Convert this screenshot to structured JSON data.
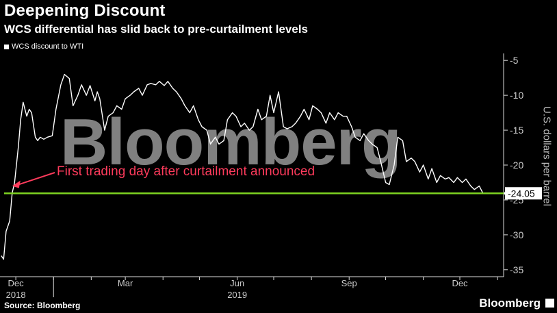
{
  "header": {
    "title": "Deepening Discount",
    "subtitle": "WCS differential has slid back to pre-curtailment levels"
  },
  "legend": {
    "label": "WCS discount to WTI"
  },
  "footer": {
    "source": "Source: Bloomberg",
    "brand": "Bloomberg"
  },
  "watermark": "Bloomberg",
  "colors": {
    "background": "#000000",
    "series": "#ffffff",
    "reference_line": "#7ed321",
    "annotation": "#ff3b5c"
  },
  "chart_data": {
    "type": "line",
    "title": "Deepening Discount",
    "subtitle": "WCS differential has slid back to pre-curtailment levels",
    "ylabel": "U.S. dollars per barrel",
    "ylim": [
      -36,
      -4
    ],
    "yticks": [
      -5,
      -10,
      -15,
      -20,
      -25,
      -30,
      -35
    ],
    "ytick_labels": [
      "-5",
      "-10",
      "-15",
      "-20",
      "-25",
      "-30",
      "-35"
    ],
    "xlim": [
      "2018-11-18",
      "2020-01-06"
    ],
    "xticks": [
      {
        "date": "2018-12-01",
        "label": "Dec"
      },
      {
        "date": "2019-03-01",
        "label": "Mar"
      },
      {
        "date": "2019-06-01",
        "label": "Jun"
      },
      {
        "date": "2019-09-01",
        "label": "Sep"
      },
      {
        "date": "2019-12-01",
        "label": "Dec"
      }
    ],
    "year_labels": [
      {
        "date": "2018-12-01",
        "label": "2018"
      },
      {
        "date": "2019-06-01",
        "label": "2019"
      }
    ],
    "legend_position": "top-left",
    "series": [
      {
        "name": "WCS discount to WTI",
        "points": [
          [
            "2018-11-19",
            -33.0
          ],
          [
            "2018-11-21",
            -33.5
          ],
          [
            "2018-11-23",
            -29.5
          ],
          [
            "2018-11-26",
            -28.0
          ],
          [
            "2018-11-28",
            -24.0
          ],
          [
            "2018-11-30",
            -22.5
          ],
          [
            "2018-12-03",
            -17.5
          ],
          [
            "2018-12-05",
            -13.5
          ],
          [
            "2018-12-07",
            -11.0
          ],
          [
            "2018-12-10",
            -13.0
          ],
          [
            "2018-12-12",
            -12.0
          ],
          [
            "2018-12-14",
            -12.5
          ],
          [
            "2018-12-17",
            -16.0
          ],
          [
            "2018-12-19",
            -16.5
          ],
          [
            "2018-12-21",
            -16.0
          ],
          [
            "2018-12-24",
            -16.3
          ],
          [
            "2018-12-27",
            -16.0
          ],
          [
            "2018-12-31",
            -15.8
          ],
          [
            "2019-01-03",
            -12.0
          ],
          [
            "2019-01-07",
            -8.5
          ],
          [
            "2019-01-10",
            -7.0
          ],
          [
            "2019-01-14",
            -7.6
          ],
          [
            "2019-01-17",
            -11.5
          ],
          [
            "2019-01-21",
            -10.0
          ],
          [
            "2019-01-24",
            -8.5
          ],
          [
            "2019-01-28",
            -10.0
          ],
          [
            "2019-01-31",
            -8.6
          ],
          [
            "2019-02-04",
            -10.8
          ],
          [
            "2019-02-06",
            -9.5
          ],
          [
            "2019-02-08",
            -10.5
          ],
          [
            "2019-02-12",
            -15.0
          ],
          [
            "2019-02-15",
            -13.0
          ],
          [
            "2019-02-19",
            -12.5
          ],
          [
            "2019-02-22",
            -11.5
          ],
          [
            "2019-02-26",
            -12.0
          ],
          [
            "2019-03-01",
            -10.5
          ],
          [
            "2019-03-05",
            -10.0
          ],
          [
            "2019-03-08",
            -9.5
          ],
          [
            "2019-03-12",
            -9.0
          ],
          [
            "2019-03-15",
            -10.0
          ],
          [
            "2019-03-19",
            -8.5
          ],
          [
            "2019-03-22",
            -8.3
          ],
          [
            "2019-03-26",
            -8.5
          ],
          [
            "2019-03-29",
            -8.0
          ],
          [
            "2019-04-02",
            -8.6
          ],
          [
            "2019-04-05",
            -8.0
          ],
          [
            "2019-04-09",
            -9.0
          ],
          [
            "2019-04-12",
            -9.5
          ],
          [
            "2019-04-16",
            -10.5
          ],
          [
            "2019-04-19",
            -11.5
          ],
          [
            "2019-04-23",
            -12.5
          ],
          [
            "2019-04-26",
            -11.5
          ],
          [
            "2019-04-30",
            -13.5
          ],
          [
            "2019-05-03",
            -14.5
          ],
          [
            "2019-05-07",
            -15.0
          ],
          [
            "2019-05-10",
            -17.0
          ],
          [
            "2019-05-14",
            -16.0
          ],
          [
            "2019-05-17",
            -17.0
          ],
          [
            "2019-05-21",
            -16.5
          ],
          [
            "2019-05-24",
            -13.5
          ],
          [
            "2019-05-28",
            -12.5
          ],
          [
            "2019-05-31",
            -13.0
          ],
          [
            "2019-06-04",
            -14.5
          ],
          [
            "2019-06-07",
            -14.0
          ],
          [
            "2019-06-11",
            -15.0
          ],
          [
            "2019-06-14",
            -14.5
          ],
          [
            "2019-06-18",
            -12.0
          ],
          [
            "2019-06-21",
            -13.5
          ],
          [
            "2019-06-25",
            -13.0
          ],
          [
            "2019-06-28",
            -10.0
          ],
          [
            "2019-07-01",
            -12.5
          ],
          [
            "2019-07-05",
            -9.5
          ],
          [
            "2019-07-09",
            -14.5
          ],
          [
            "2019-07-12",
            -14.8
          ],
          [
            "2019-07-16",
            -14.5
          ],
          [
            "2019-07-19",
            -14.0
          ],
          [
            "2019-07-23",
            -13.0
          ],
          [
            "2019-07-26",
            -12.0
          ],
          [
            "2019-07-30",
            -13.5
          ],
          [
            "2019-08-02",
            -11.5
          ],
          [
            "2019-08-06",
            -12.0
          ],
          [
            "2019-08-09",
            -12.5
          ],
          [
            "2019-08-13",
            -14.0
          ],
          [
            "2019-08-16",
            -12.5
          ],
          [
            "2019-08-20",
            -13.5
          ],
          [
            "2019-08-23",
            -12.5
          ],
          [
            "2019-08-27",
            -13.0
          ],
          [
            "2019-08-30",
            -13.0
          ],
          [
            "2019-09-03",
            -14.5
          ],
          [
            "2019-09-06",
            -16.0
          ],
          [
            "2019-09-10",
            -16.5
          ],
          [
            "2019-09-13",
            -15.5
          ],
          [
            "2019-09-17",
            -16.5
          ],
          [
            "2019-09-20",
            -17.0
          ],
          [
            "2019-09-24",
            -17.5
          ],
          [
            "2019-09-27",
            -19.5
          ],
          [
            "2019-10-01",
            -22.5
          ],
          [
            "2019-10-04",
            -22.8
          ],
          [
            "2019-10-08",
            -20.0
          ],
          [
            "2019-10-11",
            -16.0
          ],
          [
            "2019-10-15",
            -16.5
          ],
          [
            "2019-10-18",
            -19.5
          ],
          [
            "2019-10-22",
            -19.0
          ],
          [
            "2019-10-25",
            -19.5
          ],
          [
            "2019-10-29",
            -21.0
          ],
          [
            "2019-11-01",
            -20.0
          ],
          [
            "2019-11-05",
            -22.0
          ],
          [
            "2019-11-08",
            -20.5
          ],
          [
            "2019-11-12",
            -22.5
          ],
          [
            "2019-11-15",
            -21.5
          ],
          [
            "2019-11-19",
            -22.0
          ],
          [
            "2019-11-22",
            -21.8
          ],
          [
            "2019-11-26",
            -22.5
          ],
          [
            "2019-11-29",
            -21.8
          ],
          [
            "2019-12-03",
            -22.5
          ],
          [
            "2019-12-06",
            -22.0
          ],
          [
            "2019-12-10",
            -23.0
          ],
          [
            "2019-12-13",
            -23.5
          ],
          [
            "2019-12-17",
            -23.0
          ],
          [
            "2019-12-20",
            -24.05
          ]
        ]
      }
    ],
    "reference_line": {
      "value": -24.05,
      "label": "-24.05"
    },
    "annotation": {
      "text": "First trading day after curtailment announced",
      "date": "2018-11-28",
      "value": -23.0
    }
  }
}
